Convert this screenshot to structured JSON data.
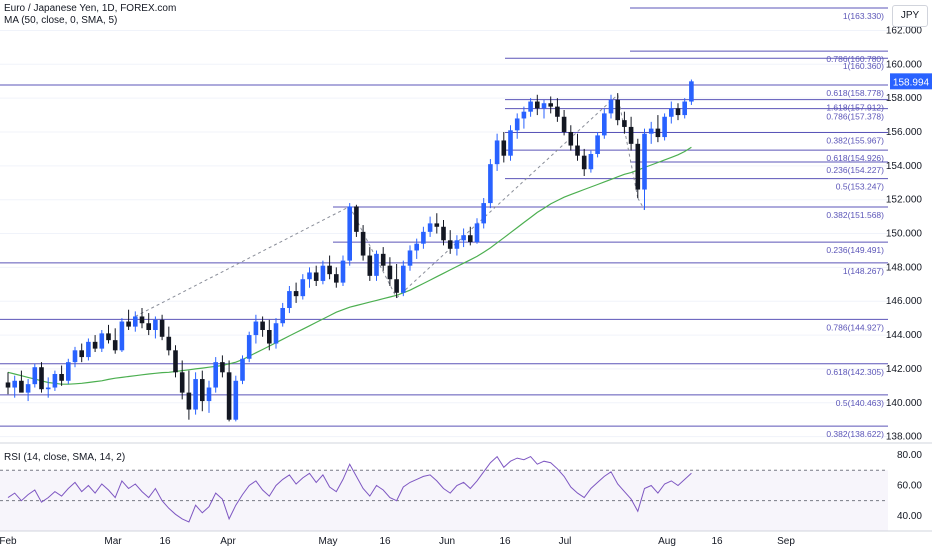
{
  "header": {
    "title": "Euro / Japanese Yen, 1D, FOREX.com",
    "ma_label": "MA (50, close, 0, SMA, 5)",
    "rsi_label": "RSI (14, close, SMA, 14, 2)"
  },
  "currency_button": "JPY",
  "colors": {
    "bull": "#2962ff",
    "bear": "#131722",
    "ma": "#4caf50",
    "fib": "#5b55b8",
    "rsi": "#7e57c2",
    "price_badge": "#2962ff"
  },
  "chart_data": [
    {
      "type": "candlestick",
      "title": "Euro / Japanese Yen, 1D, FOREX.com",
      "ylim": [
        137.8,
        163.8
      ],
      "y_ticks": [
        138.0,
        140.0,
        142.0,
        144.0,
        146.0,
        148.0,
        150.0,
        152.0,
        154.0,
        156.0,
        158.0,
        160.0,
        162.0
      ],
      "y_tick_labels": [
        "138.000",
        "140.000",
        "142.000",
        "144.000",
        "146.000",
        "148.000",
        "150.000",
        "152.000",
        "154.000",
        "156.000",
        "158.000",
        "160.000",
        "162.000"
      ],
      "x_labels": [
        "Feb",
        "Mar",
        "16",
        "Apr",
        "May",
        "16",
        "Jun",
        "16",
        "Jul",
        "Aug",
        "16",
        "Sep"
      ],
      "last_price": 158.994,
      "last_price_label": "158.994",
      "candles": [
        [
          141.2,
          141.8,
          140.5,
          140.9
        ],
        [
          140.9,
          141.6,
          140.3,
          141.3
        ],
        [
          141.3,
          141.9,
          140.8,
          140.6
        ],
        [
          140.6,
          141.4,
          140.1,
          141.1
        ],
        [
          141.1,
          142.3,
          140.9,
          142.1
        ],
        [
          142.1,
          142.4,
          140.6,
          140.8
        ],
        [
          140.8,
          141.5,
          140.3,
          140.9
        ],
        [
          140.9,
          141.9,
          140.7,
          141.7
        ],
        [
          141.7,
          142.2,
          141.0,
          141.3
        ],
        [
          141.3,
          142.6,
          141.1,
          142.4
        ],
        [
          142.4,
          143.3,
          142.1,
          143.1
        ],
        [
          143.1,
          143.5,
          142.4,
          142.7
        ],
        [
          142.7,
          143.8,
          142.5,
          143.6
        ],
        [
          143.6,
          144.0,
          143.0,
          143.2
        ],
        [
          143.2,
          144.3,
          143.0,
          144.1
        ],
        [
          144.1,
          144.6,
          143.5,
          143.7
        ],
        [
          143.7,
          144.4,
          142.9,
          143.1
        ],
        [
          143.1,
          145.0,
          143.0,
          144.8
        ],
        [
          144.8,
          145.5,
          144.3,
          144.5
        ],
        [
          144.5,
          145.4,
          144.2,
          145.1
        ],
        [
          145.1,
          145.6,
          144.4,
          144.7
        ],
        [
          144.7,
          145.3,
          144.0,
          144.3
        ],
        [
          144.3,
          145.1,
          143.8,
          144.9
        ],
        [
          144.9,
          145.2,
          143.7,
          143.9
        ],
        [
          143.9,
          144.5,
          142.8,
          143.1
        ],
        [
          143.1,
          143.4,
          141.5,
          141.8
        ],
        [
          141.8,
          142.5,
          140.2,
          140.6
        ],
        [
          140.6,
          141.9,
          139.0,
          139.6
        ],
        [
          139.6,
          141.8,
          139.3,
          141.4
        ],
        [
          141.4,
          141.9,
          139.5,
          140.1
        ],
        [
          140.1,
          141.3,
          139.4,
          140.9
        ],
        [
          140.9,
          142.7,
          140.6,
          142.4
        ],
        [
          142.4,
          142.8,
          141.5,
          141.8
        ],
        [
          141.8,
          142.5,
          138.9,
          139.0
        ],
        [
          139.0,
          141.6,
          138.9,
          141.3
        ],
        [
          141.3,
          142.8,
          141.1,
          142.6
        ],
        [
          142.6,
          144.2,
          142.4,
          144.0
        ],
        [
          144.0,
          145.2,
          143.5,
          144.8
        ],
        [
          144.8,
          145.1,
          143.9,
          144.3
        ],
        [
          144.3,
          144.9,
          143.1,
          143.5
        ],
        [
          143.5,
          145.0,
          143.2,
          144.7
        ],
        [
          144.7,
          145.9,
          144.5,
          145.6
        ],
        [
          145.6,
          146.9,
          145.3,
          146.6
        ],
        [
          146.6,
          147.1,
          145.9,
          146.3
        ],
        [
          146.3,
          147.6,
          146.1,
          147.3
        ],
        [
          147.3,
          148.0,
          146.8,
          147.7
        ],
        [
          147.7,
          148.1,
          146.9,
          147.2
        ],
        [
          147.2,
          148.4,
          147.0,
          148.1
        ],
        [
          148.1,
          148.7,
          147.3,
          147.6
        ],
        [
          147.6,
          148.0,
          146.8,
          147.1
        ],
        [
          147.1,
          148.7,
          146.9,
          148.4
        ],
        [
          148.4,
          151.8,
          148.1,
          151.6
        ],
        [
          151.6,
          151.7,
          149.8,
          150.1
        ],
        [
          150.1,
          150.5,
          148.4,
          148.7
        ],
        [
          148.7,
          149.2,
          147.2,
          147.5
        ],
        [
          147.5,
          149.0,
          147.2,
          148.8
        ],
        [
          148.8,
          149.2,
          147.8,
          148.1
        ],
        [
          148.1,
          148.6,
          146.9,
          147.3
        ],
        [
          147.3,
          148.2,
          146.2,
          146.5
        ],
        [
          146.5,
          148.4,
          146.3,
          148.1
        ],
        [
          148.1,
          149.3,
          147.8,
          149.0
        ],
        [
          149.0,
          149.7,
          148.5,
          149.4
        ],
        [
          149.4,
          150.4,
          149.1,
          150.1
        ],
        [
          150.1,
          151.0,
          149.8,
          150.6
        ],
        [
          150.6,
          151.2,
          150.0,
          150.4
        ],
        [
          150.4,
          150.8,
          149.3,
          149.6
        ],
        [
          149.6,
          150.2,
          148.8,
          149.1
        ],
        [
          149.1,
          149.9,
          148.7,
          149.6
        ],
        [
          149.6,
          150.3,
          149.2,
          149.9
        ],
        [
          149.9,
          150.4,
          149.3,
          149.5
        ],
        [
          149.5,
          150.9,
          149.4,
          150.6
        ],
        [
          150.6,
          152.1,
          150.3,
          151.8
        ],
        [
          151.8,
          154.4,
          151.5,
          154.1
        ],
        [
          154.1,
          155.9,
          153.7,
          155.5
        ],
        [
          155.5,
          156.0,
          154.2,
          154.6
        ],
        [
          154.6,
          156.4,
          154.3,
          156.1
        ],
        [
          156.1,
          157.1,
          155.6,
          156.8
        ],
        [
          156.8,
          157.5,
          156.2,
          157.2
        ],
        [
          157.2,
          158.0,
          156.9,
          157.8
        ],
        [
          157.8,
          158.2,
          157.0,
          157.4
        ],
        [
          157.4,
          157.9,
          156.8,
          157.7
        ],
        [
          157.7,
          158.1,
          157.1,
          157.5
        ],
        [
          157.5,
          158.0,
          156.6,
          156.9
        ],
        [
          156.9,
          157.3,
          155.8,
          156.0
        ],
        [
          156.0,
          156.4,
          154.9,
          155.2
        ],
        [
          155.2,
          155.9,
          154.3,
          154.6
        ],
        [
          154.6,
          155.0,
          153.4,
          153.8
        ],
        [
          153.8,
          154.9,
          153.6,
          154.7
        ],
        [
          154.7,
          156.0,
          154.5,
          155.8
        ],
        [
          155.8,
          157.4,
          155.6,
          157.1
        ],
        [
          157.1,
          158.2,
          156.8,
          157.9
        ],
        [
          157.9,
          158.3,
          156.4,
          156.7
        ],
        [
          156.7,
          157.2,
          155.9,
          156.3
        ],
        [
          156.3,
          156.9,
          154.9,
          155.3
        ],
        [
          155.3,
          155.6,
          152.1,
          152.6
        ],
        [
          152.6,
          156.2,
          151.4,
          155.9
        ],
        [
          155.9,
          156.6,
          155.3,
          156.2
        ],
        [
          156.2,
          157.0,
          155.4,
          155.7
        ],
        [
          155.7,
          157.1,
          155.5,
          156.9
        ],
        [
          156.9,
          157.8,
          156.5,
          157.4
        ],
        [
          157.4,
          157.7,
          156.7,
          157.0
        ],
        [
          157.0,
          158.0,
          156.8,
          157.8
        ],
        [
          157.8,
          159.1,
          157.6,
          158.994
        ]
      ],
      "ma50": [
        141.8,
        141.7,
        141.6,
        141.5,
        141.4,
        141.3,
        141.2,
        141.15,
        141.1,
        141.1,
        141.12,
        141.15,
        141.2,
        141.25,
        141.3,
        141.38,
        141.45,
        141.5,
        141.55,
        141.6,
        141.65,
        141.7,
        141.74,
        141.78,
        141.8,
        141.85,
        141.9,
        141.95,
        142.0,
        142.05,
        142.1,
        142.15,
        142.2,
        142.3,
        142.4,
        142.55,
        142.75,
        142.95,
        143.15,
        143.35,
        143.55,
        143.75,
        143.95,
        144.15,
        144.35,
        144.55,
        144.75,
        144.95,
        145.15,
        145.35,
        145.5,
        145.65,
        145.75,
        145.85,
        145.95,
        146.05,
        146.15,
        146.25,
        146.35,
        146.5,
        146.65,
        146.85,
        147.05,
        147.25,
        147.45,
        147.65,
        147.85,
        148.05,
        148.25,
        148.45,
        148.65,
        148.9,
        149.15,
        149.45,
        149.75,
        150.05,
        150.35,
        150.65,
        150.95,
        151.25,
        151.5,
        151.75,
        151.95,
        152.15,
        152.3,
        152.45,
        152.6,
        152.75,
        152.9,
        153.05,
        153.2,
        153.35,
        153.5,
        153.6,
        153.75,
        153.9,
        154.05,
        154.2,
        154.35,
        154.5,
        154.65,
        154.85,
        155.1
      ],
      "rsi": [
        52,
        55,
        50,
        54,
        57,
        49,
        52,
        56,
        53,
        58,
        62,
        56,
        60,
        55,
        61,
        57,
        52,
        63,
        58,
        61,
        56,
        52,
        58,
        50,
        45,
        41,
        38,
        36,
        47,
        42,
        46,
        55,
        51,
        38,
        47,
        54,
        60,
        63,
        57,
        53,
        60,
        64,
        67,
        61,
        65,
        68,
        62,
        67,
        59,
        56,
        64,
        74,
        66,
        58,
        53,
        60,
        57,
        52,
        50,
        59,
        62,
        64,
        66,
        67,
        63,
        58,
        55,
        60,
        62,
        58,
        63,
        69,
        75,
        79,
        72,
        76,
        78,
        77,
        79,
        74,
        76,
        75,
        71,
        66,
        59,
        55,
        52,
        58,
        62,
        66,
        69,
        61,
        56,
        51,
        43,
        58,
        60,
        55,
        61,
        63,
        60,
        64,
        68
      ],
      "rsi_ylim": [
        32,
        86
      ],
      "rsi_ticks": [
        40.0,
        60.0,
        80.0
      ],
      "rsi_tick_labels": [
        "40.00",
        "60.00",
        "80.00"
      ],
      "rsi_bands": [
        70,
        50,
        30
      ],
      "fib_levels": [
        {
          "level": 163.33,
          "label": "1(163.330)"
        },
        {
          "level": 160.78,
          "label": "0.786(160.780)"
        },
        {
          "level": 160.36,
          "label": "1(160.360)"
        },
        {
          "level": 158.778,
          "label": "0.618(158.778)"
        },
        {
          "level": 157.912,
          "label": "1.618(157.912)"
        },
        {
          "level": 157.378,
          "label": "0.786(157.378)"
        },
        {
          "level": 155.967,
          "label": "0.382(155.967)"
        },
        {
          "level": 154.926,
          "label": "0.618(154.926)"
        },
        {
          "level": 154.227,
          "label": "0.236(154.227)"
        },
        {
          "level": 153.247,
          "label": "0.5(153.247)"
        },
        {
          "level": 151.568,
          "label": "0.382(151.568)"
        },
        {
          "level": 149.491,
          "label": "0.236(149.491)"
        },
        {
          "level": 148.267,
          "label": "1(148.267)"
        },
        {
          "level": 144.927,
          "label": "0.786(144.927)"
        },
        {
          "level": 142.305,
          "label": "0.618(142.305)"
        },
        {
          "level": 140.463,
          "label": "0.5(140.463)"
        },
        {
          "level": 138.622,
          "label": "0.382(138.622)"
        }
      ],
      "dashed_swings": [
        {
          "from": {
            "bar": 19,
            "price": 145.1
          },
          "to": {
            "bar": 51,
            "price": 151.6
          }
        },
        {
          "from": {
            "bar": 51,
            "price": 151.6
          },
          "to": {
            "bar": 58,
            "price": 146.2
          }
        },
        {
          "from": {
            "bar": 58,
            "price": 146.2
          },
          "to": {
            "bar": 91,
            "price": 158.2
          }
        },
        {
          "from": {
            "bar": 91,
            "price": 158.2
          },
          "to": {
            "bar": 94,
            "price": 152.1
          }
        },
        {
          "from": {
            "bar": 94,
            "price": 152.1
          },
          "to": {
            "bar": 95,
            "price": 151.4
          }
        }
      ]
    }
  ]
}
